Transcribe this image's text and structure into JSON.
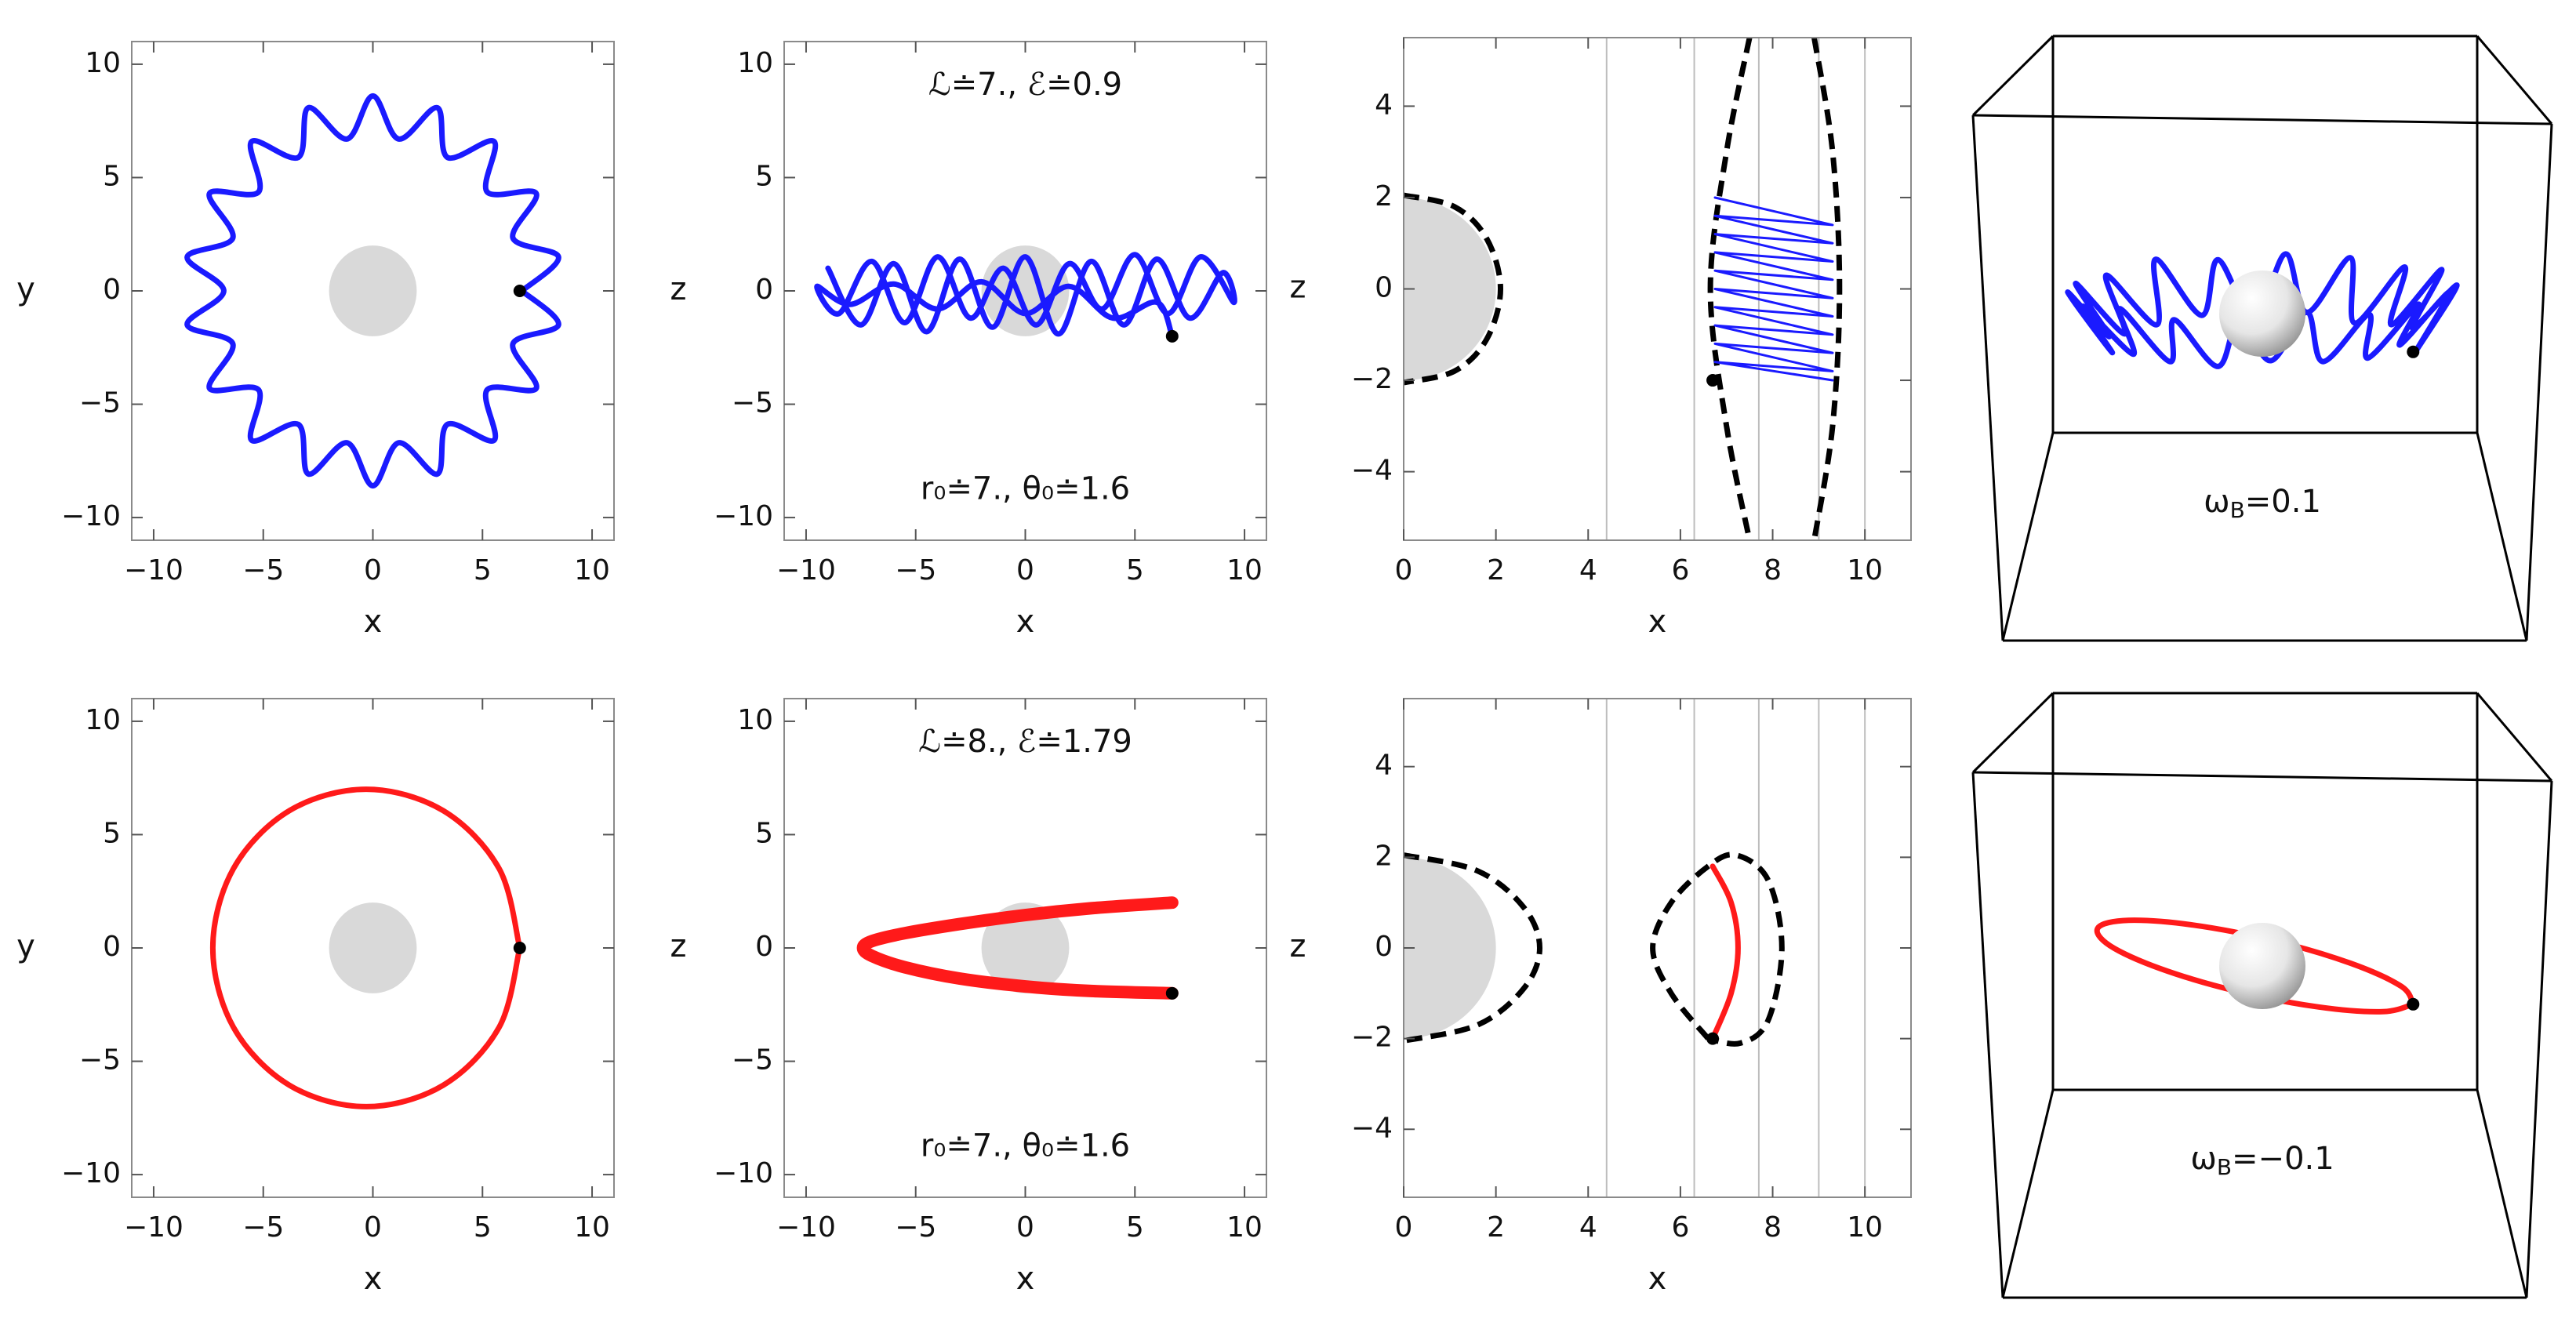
{
  "chart_data": [
    {
      "type": "line",
      "x_label": "x",
      "y_label": "y",
      "xlim": [
        -11,
        11
      ],
      "ylim": [
        -11,
        11
      ],
      "xticks": [
        {
          "value": -10,
          "label": "−10"
        },
        {
          "value": -5,
          "label": "−5"
        },
        0,
        5,
        10
      ],
      "yticks": [
        {
          "value": -10,
          "label": "−10"
        },
        {
          "value": -5,
          "label": "−5"
        },
        0,
        5,
        10
      ],
      "body": {
        "radius": 2,
        "color": "#d9d9d9"
      },
      "series": [
        {
          "color": "#1a1aff",
          "smooth": true,
          "x": [
            6.8,
            8.47,
            6.39,
            7.45,
            5.21,
            5.53,
            3.4,
            2.94,
            1.18,
            0,
            -1.18,
            -2.94,
            -3.4,
            -5.53,
            -5.21,
            -7.45,
            -6.39,
            -8.47,
            -6.8,
            -8.47,
            -6.39,
            -7.45,
            -5.21,
            -5.53,
            -3.4,
            -2.94,
            -1.18,
            0,
            1.18,
            2.94,
            3.4,
            5.53,
            5.21,
            7.45,
            6.39,
            8.47,
            6.8
          ],
          "y": [
            0,
            1.49,
            2.33,
            4.3,
            4.37,
            6.59,
            5.89,
            8.08,
            6.7,
            8.6,
            6.7,
            8.08,
            5.89,
            6.59,
            4.37,
            4.3,
            2.33,
            1.49,
            0,
            -1.49,
            -2.33,
            -4.3,
            -4.37,
            -6.59,
            -5.89,
            -8.08,
            -6.7,
            -8.6,
            -6.7,
            -8.08,
            -5.89,
            -6.59,
            -4.37,
            -4.3,
            -2.33,
            -1.49,
            0
          ]
        }
      ],
      "marker": {
        "x": 6.7,
        "y": 0,
        "color": "#000000"
      }
    },
    {
      "type": "line",
      "x_label": "x",
      "y_label": "z",
      "xlim": [
        -11,
        11
      ],
      "ylim": [
        -11,
        11
      ],
      "xticks": [
        {
          "value": -10,
          "label": "−10"
        },
        {
          "value": -5,
          "label": "−5"
        },
        0,
        5,
        10
      ],
      "yticks": [
        {
          "value": -10,
          "label": "−10"
        },
        {
          "value": -5,
          "label": "−5"
        },
        0,
        5,
        10
      ],
      "body": {
        "radius": 2,
        "color": "#d9d9d9"
      },
      "annotations": [
        "ℒ≐7., ℰ≐0.9",
        "r₀≐7., θ₀≐1.6"
      ],
      "series": [
        {
          "color": "#1a1aff",
          "smooth": true,
          "x": [
            -9,
            -7.5,
            -6,
            -4.5,
            -3,
            -1.5,
            0,
            1.5,
            3,
            4.5,
            6,
            7.5,
            9,
            9.5,
            8,
            6.5,
            5,
            3.5,
            2,
            0.5,
            -1,
            -2.5,
            -4,
            -5.5,
            -7,
            -8.5,
            -9.5,
            -8,
            -6,
            -4,
            -2,
            0,
            2,
            4,
            6,
            6.7
          ],
          "y": [
            1,
            -1.5,
            1.2,
            -1.8,
            1.4,
            -1.6,
            1.5,
            -1.9,
            1.3,
            -1.5,
            1.4,
            -1.2,
            0.8,
            -0.5,
            1.5,
            -1.0,
            1.6,
            -0.8,
            1.2,
            -1.5,
            1.0,
            -1.2,
            1.5,
            -1.4,
            1.3,
            -1.0,
            0.2,
            -0.6,
            0.3,
            -0.8,
            0.4,
            -1.0,
            0.2,
            -1.2,
            -0.5,
            -2.0
          ]
        }
      ],
      "marker": {
        "x": 6.7,
        "y": -2,
        "color": "#000000"
      }
    },
    {
      "type": "line",
      "x_label": "x",
      "y_label": "z",
      "xlim": [
        0,
        11
      ],
      "ylim": [
        -5.5,
        5.5
      ],
      "xticks": [
        0,
        2,
        4,
        6,
        8,
        10
      ],
      "yticks": [
        {
          "value": -4,
          "label": "−4"
        },
        {
          "value": -2,
          "label": "−2"
        },
        0,
        2,
        4
      ],
      "body": {
        "radius": 2,
        "color": "#d9d9d9"
      },
      "vlines": [
        4.4,
        6.3,
        7.7,
        9.0,
        10.0
      ],
      "boundaries": [
        {
          "color": "#000000",
          "x": [
            0,
            1.1,
            1.8,
            2.1,
            1.8,
            1.1,
            0
          ],
          "y": [
            2.05,
            1.8,
            1.1,
            0,
            -1.1,
            -1.8,
            -2.05
          ]
        },
        {
          "color": "#000000",
          "x": [
            7.5,
            7.0,
            6.65,
            7.0,
            7.5
          ],
          "y": [
            5.5,
            3.0,
            0,
            -3.0,
            -5.5
          ]
        },
        {
          "color": "#000000",
          "x": [
            8.9,
            9.3,
            9.45,
            9.3,
            8.9
          ],
          "y": [
            5.5,
            3.0,
            0,
            -3.0,
            -5.5
          ]
        }
      ],
      "series": [
        {
          "color": "#1a1aff",
          "smooth": false,
          "x": [
            6.75,
            9.3,
            6.75,
            9.3,
            6.75,
            9.3,
            6.75,
            9.3,
            6.75,
            9.3,
            6.75,
            9.3,
            6.75,
            9.3,
            6.75,
            9.3,
            6.75,
            9.3,
            6.75,
            9.3
          ],
          "y": [
            2.0,
            1.4,
            1.6,
            1.0,
            1.2,
            0.6,
            0.8,
            0.2,
            0.4,
            -0.2,
            0,
            -0.6,
            -0.4,
            -1.0,
            -0.8,
            -1.4,
            -1.2,
            -1.8,
            -1.6,
            -2.0
          ]
        }
      ],
      "marker": {
        "x": 6.7,
        "y": -2,
        "color": "#000000"
      }
    },
    {
      "type": "line3d",
      "omega_label": {
        "base": "ω",
        "sub": "B",
        "rest": "=0.1"
      },
      "series": [
        {
          "color": "#1a1aff",
          "x": [
            6.8,
            8.47,
            6.39,
            7.45,
            5.21,
            5.53,
            3.4,
            2.94,
            1.18,
            0,
            -1.18,
            -2.94,
            -3.4,
            -5.53,
            -5.21,
            -7.45,
            -6.39,
            -8.47,
            -6.8,
            -8.47,
            -6.39,
            -7.45,
            -5.21,
            -5.53,
            -3.4,
            -2.94,
            -1.18,
            0,
            1.18,
            2.94,
            3.4,
            5.53,
            5.21,
            7.45,
            6.39,
            8.47,
            6.8
          ],
          "y": [
            0,
            1.49,
            2.33,
            4.3,
            4.37,
            6.59,
            5.89,
            8.08,
            6.7,
            8.6,
            6.7,
            8.08,
            5.89,
            6.59,
            4.37,
            4.3,
            2.33,
            1.49,
            0,
            -1.49,
            -2.33,
            -4.3,
            -4.37,
            -6.59,
            -5.89,
            -8.08,
            -6.7,
            -8.6,
            -6.7,
            -8.08,
            -5.89,
            -6.59,
            -4.37,
            -4.3,
            -2.33,
            -1.49,
            0
          ],
          "z": [
            -2,
            1.2,
            -1.2,
            1.5,
            -1.4,
            1.2,
            -1.6,
            1.4,
            -1.2,
            1.5,
            -1.5,
            1.3,
            -1.2,
            1.6,
            -1.4,
            1.2,
            -1.5,
            1.3,
            -1.2,
            1.4,
            -1.6,
            1.2,
            -1.3,
            1.5,
            -1.4,
            1.2,
            -1.5,
            1.3,
            -1.2,
            1.6,
            -1.4,
            1.2,
            -1.5,
            1.3,
            -1.2,
            1.4,
            -2
          ]
        }
      ],
      "marker": {
        "x": 6.7,
        "y": 0,
        "z": -2,
        "color": "#000000"
      }
    },
    {
      "type": "line",
      "x_label": "x",
      "y_label": "y",
      "xlim": [
        -11,
        11
      ],
      "ylim": [
        -11,
        11
      ],
      "xticks": [
        {
          "value": -10,
          "label": "−10"
        },
        {
          "value": -5,
          "label": "−5"
        },
        0,
        5,
        10
      ],
      "yticks": [
        {
          "value": -10,
          "label": "−10"
        },
        {
          "value": -5,
          "label": "−5"
        },
        0,
        5,
        10
      ],
      "body": {
        "radius": 2,
        "color": "#d9d9d9"
      },
      "series": [
        {
          "color": "#ff1a1a",
          "smooth": true,
          "x": [
            6.7,
            5.76,
            3.2,
            -0.3,
            -3.8,
            -6.36,
            -7.3,
            -6.36,
            -3.8,
            -0.3,
            3.2,
            5.76,
            6.7
          ],
          "y": [
            0,
            3.5,
            6.06,
            7,
            6.06,
            3.5,
            0,
            -3.5,
            -6.06,
            -7,
            -6.06,
            -3.5,
            0
          ]
        }
      ],
      "marker": {
        "x": 6.7,
        "y": 0,
        "color": "#000000"
      }
    },
    {
      "type": "line",
      "x_label": "x",
      "y_label": "z",
      "xlim": [
        -11,
        11
      ],
      "ylim": [
        -11,
        11
      ],
      "xticks": [
        {
          "value": -10,
          "label": "−10"
        },
        {
          "value": -5,
          "label": "−5"
        },
        0,
        5,
        10
      ],
      "yticks": [
        {
          "value": -10,
          "label": "−10"
        },
        {
          "value": -5,
          "label": "−5"
        },
        0,
        5,
        10
      ],
      "body": {
        "radius": 2,
        "color": "#d9d9d9"
      },
      "annotations": [
        "ℒ≐8., ℰ≐1.79",
        "r₀≐7., θ₀≐1.6"
      ],
      "series": [
        {
          "color": "#ff1a1a",
          "smooth": true,
          "width": 16,
          "x": [
            6.7,
            3,
            0,
            -3,
            -5.5,
            -7,
            -7.4,
            -7,
            -5.5,
            -3,
            0,
            3,
            6.7
          ],
          "y": [
            2.0,
            1.75,
            1.45,
            1.05,
            0.65,
            0.3,
            0,
            -0.35,
            -0.85,
            -1.35,
            -1.7,
            -1.9,
            -2.0
          ]
        }
      ],
      "marker": {
        "x": 6.7,
        "y": -2,
        "color": "#000000"
      }
    },
    {
      "type": "line",
      "x_label": "x",
      "y_label": "z",
      "xlim": [
        0,
        11
      ],
      "ylim": [
        -5.5,
        5.5
      ],
      "xticks": [
        0,
        2,
        4,
        6,
        8,
        10
      ],
      "yticks": [
        {
          "value": -4,
          "label": "−4"
        },
        {
          "value": -2,
          "label": "−2"
        },
        0,
        2,
        4
      ],
      "body": {
        "radius": 2,
        "color": "#d9d9d9"
      },
      "vlines": [
        4.4,
        6.3,
        7.7,
        9.0,
        10.0
      ],
      "boundaries": [
        {
          "color": "#000000",
          "x": [
            0,
            1.6,
            2.6,
            2.95,
            2.6,
            1.6,
            0
          ],
          "y": [
            2.05,
            1.7,
            0.9,
            0,
            -0.9,
            -1.7,
            -2.05
          ]
        },
        {
          "color": "#000000",
          "x": [
            6.6,
            5.8,
            5.4,
            5.8,
            6.6,
            7.2,
            7.9,
            8.2,
            7.9,
            7.3,
            6.6
          ],
          "y": [
            -2.0,
            -1.0,
            0,
            1.0,
            1.8,
            2.05,
            1.5,
            0,
            -1.6,
            -2.1,
            -2.0
          ]
        }
      ],
      "series": [
        {
          "color": "#ff1a1a",
          "smooth": true,
          "x": [
            6.7,
            7.1,
            7.25,
            7.1,
            6.7
          ],
          "y": [
            1.8,
            1.0,
            0,
            -1.0,
            -2.0
          ]
        }
      ],
      "marker": {
        "x": 6.7,
        "y": -2,
        "color": "#000000"
      }
    },
    {
      "type": "line3d",
      "omega_label": {
        "base": "ω",
        "sub": "B",
        "rest": "=−0.1"
      },
      "series": [
        {
          "color": "#ff1a1a",
          "x": [
            6.7,
            5.76,
            3.2,
            -0.3,
            -3.8,
            -6.36,
            -7.3,
            -6.36,
            -3.8,
            -0.3,
            3.2,
            5.76,
            6.7
          ],
          "y": [
            0,
            3.5,
            6.06,
            7,
            6.06,
            3.5,
            0,
            -3.5,
            -6.06,
            -7,
            -6.06,
            -3.5,
            0
          ],
          "z": [
            -2,
            -1.73,
            -1,
            0,
            1,
            1.73,
            2,
            1.73,
            1,
            0,
            -1,
            -1.73,
            -2
          ]
        }
      ],
      "marker": {
        "x": 6.7,
        "y": 0,
        "z": -2,
        "color": "#000000"
      }
    }
  ]
}
